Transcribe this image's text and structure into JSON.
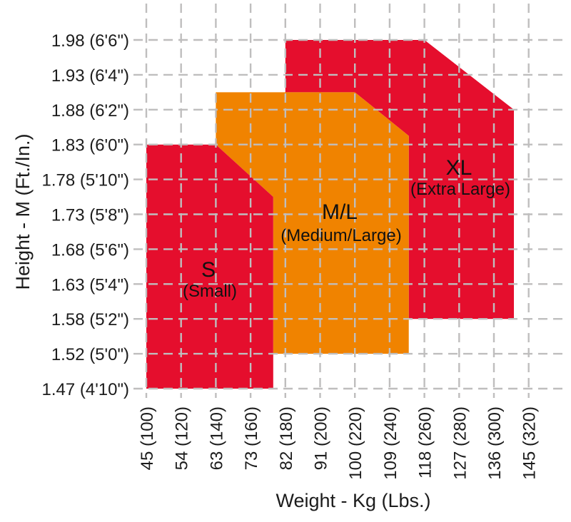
{
  "chart_data": {
    "type": "area",
    "title": "",
    "xlabel": "Weight - Kg (Lbs.)",
    "ylabel": "Height - M (Ft./In.)",
    "grid": true,
    "x_axis": {
      "unit": "kg (lbs)",
      "lbs_range": [
        100,
        320
      ],
      "ticks": [
        {
          "label": "45 (100)",
          "kg": 45,
          "lbs": 100
        },
        {
          "label": "54 (120)",
          "kg": 54,
          "lbs": 120
        },
        {
          "label": "63 (140)",
          "kg": 63,
          "lbs": 140
        },
        {
          "label": "73 (160)",
          "kg": 73,
          "lbs": 160
        },
        {
          "label": "82 (180)",
          "kg": 82,
          "lbs": 180
        },
        {
          "label": "91 (200)",
          "kg": 91,
          "lbs": 200
        },
        {
          "label": "100 (220)",
          "kg": 100,
          "lbs": 220
        },
        {
          "label": "109 (240)",
          "kg": 109,
          "lbs": 240
        },
        {
          "label": "118 (260)",
          "kg": 118,
          "lbs": 260
        },
        {
          "label": "127 (280)",
          "kg": 127,
          "lbs": 280
        },
        {
          "label": "136 (300)",
          "kg": 136,
          "lbs": 300
        },
        {
          "label": "145 (320)",
          "kg": 145,
          "lbs": 320
        }
      ]
    },
    "y_axis": {
      "unit": "m (ft/in)",
      "inches_range": [
        58,
        78
      ],
      "ticks": [
        {
          "label": "1.98 (6'6\")",
          "m": 1.98,
          "ft_in": "6'6\"",
          "inches": 78
        },
        {
          "label": "1.93 (6'4\")",
          "m": 1.93,
          "ft_in": "6'4\"",
          "inches": 76
        },
        {
          "label": "1.88 (6'2\")",
          "m": 1.88,
          "ft_in": "6'2\"",
          "inches": 74
        },
        {
          "label": "1.83 (6'0\")",
          "m": 1.83,
          "ft_in": "6'0\"",
          "inches": 72
        },
        {
          "label": "1.78 (5'10\")",
          "m": 1.78,
          "ft_in": "5'10\"",
          "inches": 70
        },
        {
          "label": "1.73 (5'8\")",
          "m": 1.73,
          "ft_in": "5'8\"",
          "inches": 68
        },
        {
          "label": "1.68 (5'6\")",
          "m": 1.68,
          "ft_in": "5'6\"",
          "inches": 66
        },
        {
          "label": "1.63 (5'4\")",
          "m": 1.63,
          "ft_in": "5'4\"",
          "inches": 64
        },
        {
          "label": "1.58 (5'2\")",
          "m": 1.58,
          "ft_in": "5'2\"",
          "inches": 62
        },
        {
          "label": "1.52 (5'0\")",
          "m": 1.52,
          "ft_in": "5'0\"",
          "inches": 60
        },
        {
          "label": "1.47 (4'10\")",
          "m": 1.47,
          "ft_in": "4'10\"",
          "inches": 58
        }
      ]
    },
    "regions": [
      {
        "id": "XL",
        "label": "XL",
        "sublabel": "(Extra Large)",
        "color": "#e50e2d",
        "polygon_lbs_inches": [
          [
            180,
            78
          ],
          [
            260,
            78
          ],
          [
            311.5,
            74
          ],
          [
            311.5,
            62
          ],
          [
            251,
            62
          ],
          [
            251,
            72.5
          ],
          [
            220,
            75
          ],
          [
            180,
            75
          ]
        ]
      },
      {
        "id": "ML",
        "label": "M/L",
        "sublabel": "(Medium/Large)",
        "color": "#f08300",
        "polygon_lbs_inches": [
          [
            140,
            75
          ],
          [
            220,
            75
          ],
          [
            251,
            72.5
          ],
          [
            251,
            60
          ],
          [
            173,
            60
          ],
          [
            173,
            69
          ],
          [
            140,
            72
          ]
        ]
      },
      {
        "id": "S",
        "label": "S",
        "sublabel": "(Small)",
        "color": "#e50e2d",
        "polygon_lbs_inches": [
          [
            100,
            72
          ],
          [
            140,
            72
          ],
          [
            173,
            69
          ],
          [
            173,
            58
          ],
          [
            100,
            58
          ]
        ]
      }
    ],
    "colors": {
      "red": "#e50e2d",
      "orange": "#f08300",
      "gridline": "#bfbebe",
      "text": "#1c1c1c"
    }
  }
}
